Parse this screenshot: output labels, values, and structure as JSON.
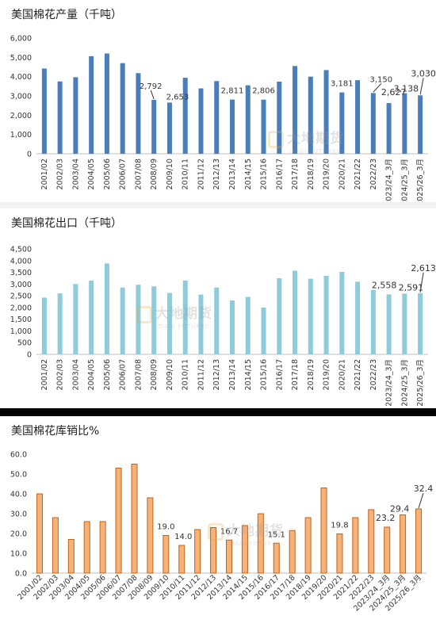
{
  "watermark": {
    "cn": "大地期货",
    "en": "DADI FUTURES"
  },
  "chart_data": [
    {
      "type": "bar",
      "title": "美国棉花产量（千吨）",
      "color": "#4a7ebb",
      "ylim": [
        0,
        6000
      ],
      "yticks": [
        "0",
        "1,000",
        "2,000",
        "3,000",
        "4,000",
        "5,000",
        "6,000"
      ],
      "grid": false,
      "categories": [
        "2001/02",
        "2002/03",
        "2003/04",
        "2004/05",
        "2005/06",
        "2006/07",
        "2007/08",
        "2008/09",
        "2009/10",
        "2010/11",
        "2011/12",
        "2012/13",
        "2013/14",
        "2014/15",
        "2015/16",
        "2016/17",
        "2017/18",
        "2018/19",
        "2019/20",
        "2020/21",
        "2021/22",
        "2022/23",
        "2023/24_3月",
        "2024/25_3月",
        "2025/26_3月"
      ],
      "values": [
        4420,
        3750,
        3970,
        5060,
        5200,
        4700,
        4180,
        2792,
        2653,
        3940,
        3390,
        3770,
        2811,
        3550,
        2806,
        3740,
        4550,
        4000,
        4340,
        3181,
        3815,
        3150,
        2627,
        3138,
        3030
      ],
      "data_labels": [
        "",
        "",
        "",
        "",
        "",
        "",
        "",
        "2,792",
        "2,653",
        "",
        "",
        "",
        "2,811",
        "",
        "2,806",
        "",
        "",
        "",
        "",
        "3,181",
        "",
        "3,150",
        "2,627",
        "3,138",
        "3,030"
      ]
    },
    {
      "type": "bar",
      "title": "美国棉花出口（千吨）",
      "color": "#8ecbdb",
      "ylim": [
        0,
        4500
      ],
      "yticks": [
        "0",
        "500",
        "1,000",
        "1,500",
        "2,000",
        "2,500",
        "3,000",
        "3,500",
        "4,000",
        "4,500"
      ],
      "grid": false,
      "categories": [
        "2001/02",
        "2002/03",
        "2003/04",
        "2004/05",
        "2005/06",
        "2006/07",
        "2007/08",
        "2008/09",
        "2009/10",
        "2010/11",
        "2011/12",
        "2012/13",
        "2013/14",
        "2014/15",
        "2015/16",
        "2016/17",
        "2017/18",
        "2018/19",
        "2019/20",
        "2020/21",
        "2021/22",
        "2022/23",
        "2023/24_3月",
        "2024/25_3月",
        "2025/26_3月"
      ],
      "values": [
        2420,
        2600,
        3000,
        3150,
        3880,
        2850,
        2970,
        2900,
        2620,
        3150,
        2550,
        2850,
        2300,
        2450,
        2000,
        3250,
        3570,
        3230,
        3350,
        3520,
        3100,
        2750,
        2558,
        2591,
        2613
      ],
      "data_labels": [
        "",
        "",
        "",
        "",
        "",
        "",
        "",
        "",
        "",
        "",
        "",
        "",
        "",
        "",
        "",
        "",
        "",
        "",
        "",
        "",
        "",
        "",
        "2,558",
        "2,591",
        "2,613"
      ]
    },
    {
      "type": "bar",
      "title": "美国棉花库销比%",
      "color": "#f7b27a",
      "ylim": [
        0,
        60
      ],
      "yticks": [
        "0.0",
        "10.0",
        "20.0",
        "30.0",
        "40.0",
        "50.0",
        "60.0"
      ],
      "grid": false,
      "categories": [
        "2001/02",
        "2002/03",
        "2003/04",
        "2004/05",
        "2005/06",
        "2006/07",
        "2007/08",
        "2008/09",
        "2009/10",
        "2010/11",
        "2011/12",
        "2012/13",
        "2013/14",
        "2014/15",
        "2015/16",
        "2016/17",
        "2017/18",
        "2018/19",
        "2019/20",
        "2020/21",
        "2021/22",
        "2022/23",
        "2023/24_3月",
        "2024/25_3月",
        "2025/26_3月"
      ],
      "values": [
        40.0,
        28.0,
        17.0,
        26.0,
        26.0,
        53.0,
        55.0,
        38.0,
        19.0,
        14.0,
        22.0,
        23.0,
        16.7,
        24.0,
        30.0,
        15.1,
        21.5,
        28.0,
        43.0,
        19.8,
        28.0,
        32.0,
        23.2,
        29.4,
        32.4
      ],
      "data_labels": [
        "",
        "",
        "",
        "",
        "",
        "",
        "",
        "",
        "19.0",
        "14.0",
        "",
        "",
        "16.7",
        "",
        "",
        "15.1",
        "",
        "",
        "",
        "19.8",
        "",
        "",
        "23.2",
        "29.4",
        "32.4"
      ]
    }
  ]
}
